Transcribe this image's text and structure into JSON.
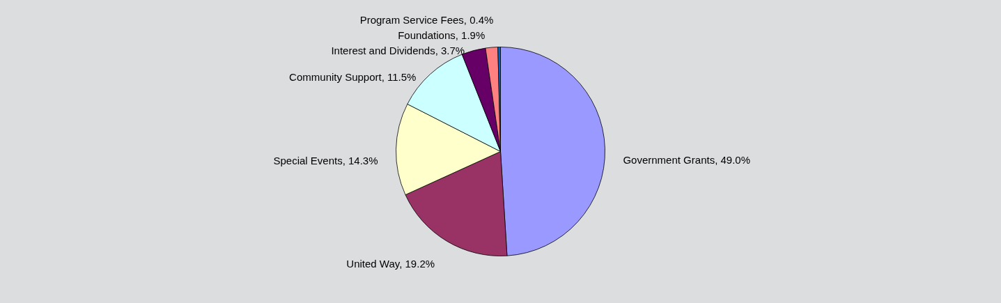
{
  "chart_data": {
    "type": "pie",
    "categories": [
      "Government Grants",
      "United Way",
      "Special Events",
      "Community Support",
      "Interest and Dividends",
      "Foundations",
      "Program Service Fees"
    ],
    "values": [
      49.0,
      19.2,
      14.3,
      11.5,
      3.7,
      1.9,
      0.4
    ],
    "value_labels": [
      "49.0%",
      "19.2%",
      "14.3%",
      "11.5%",
      "3.7%",
      "1.9%",
      "0.4%"
    ],
    "colors": [
      "#9999ff",
      "#993366",
      "#ffffcc",
      "#ccffff",
      "#660066",
      "#ff8080",
      "#0066cc"
    ],
    "legend": false
  }
}
